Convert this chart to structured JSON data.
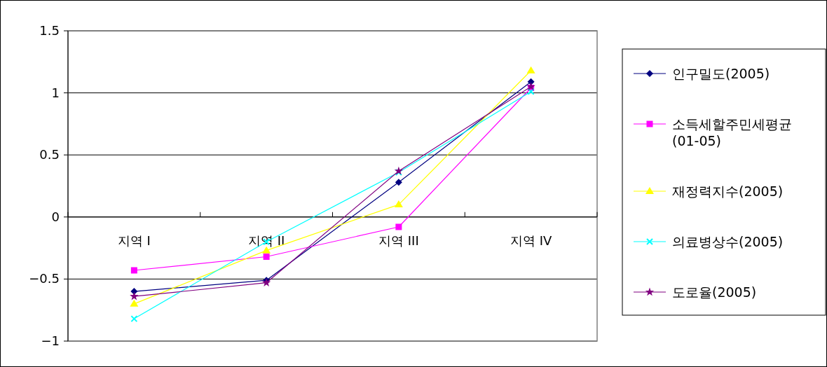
{
  "chart_data": {
    "type": "line",
    "categories": [
      "지역 I",
      "지역 II",
      "지역 III",
      "지역 IV"
    ],
    "ylim": [
      -1,
      1.5
    ],
    "yticks": [
      {
        "value": -1,
        "label": "−1"
      },
      {
        "value": -0.5,
        "label": "−0.5"
      },
      0,
      0.5,
      1,
      1.5
    ],
    "grid": "y",
    "legend": "right",
    "series": [
      {
        "name": "인구밀도(2005)",
        "color": "#000080",
        "marker": "diamond",
        "values": [
          -0.6,
          -0.51,
          0.28,
          1.09
        ]
      },
      {
        "name": "소득세할주민세평균(01-05)",
        "color": "#ff00ff",
        "marker": "square",
        "values": [
          -0.43,
          -0.32,
          -0.08,
          1.04
        ]
      },
      {
        "name": "재정력지수(2005)",
        "color": "#ffff00",
        "marker": "triangle",
        "values": [
          -0.7,
          -0.27,
          0.1,
          1.18
        ]
      },
      {
        "name": "의료병상수(2005)",
        "color": "#00ffff",
        "marker": "cross",
        "values": [
          -0.82,
          -0.2,
          0.36,
          1.01
        ]
      },
      {
        "name": "도로율(2005)",
        "color": "#800080",
        "marker": "star",
        "values": [
          -0.64,
          -0.53,
          0.37,
          1.05
        ]
      }
    ]
  }
}
